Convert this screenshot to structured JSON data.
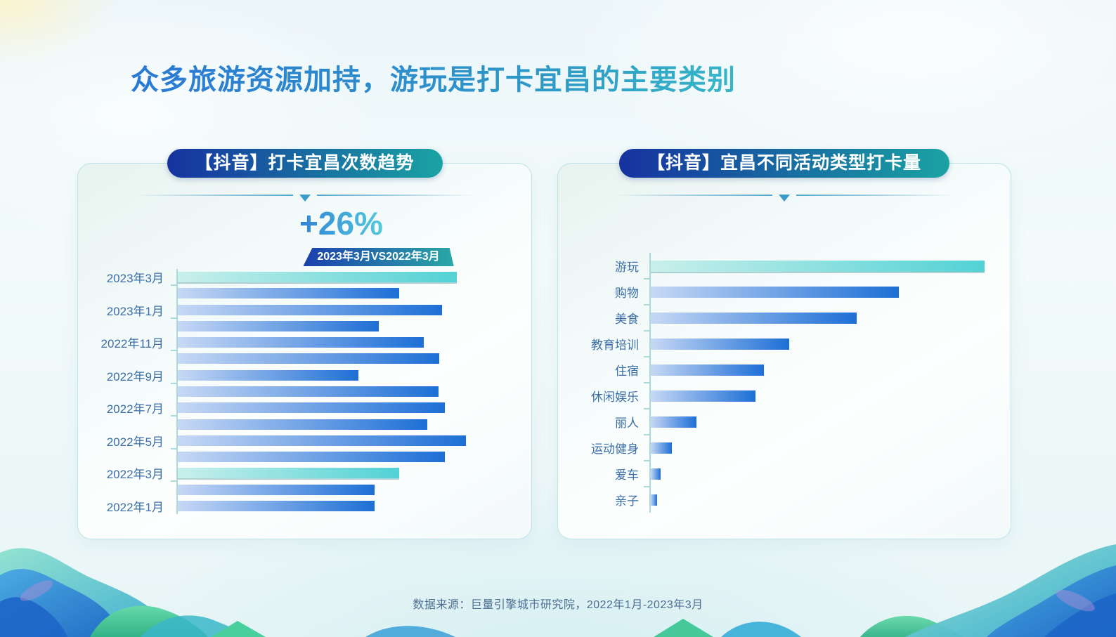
{
  "title": "众多旅游资源加持，游玩是打卡宜昌的主要类别",
  "footer": "数据来源：巨量引擎城市研究院，2022年1月-2023年3月",
  "left_panel": {
    "header": "【抖音】打卡宜昌次数趋势",
    "stat": "+26%",
    "badge": "2023年3月VS2022年3月"
  },
  "right_panel": {
    "header": "【抖音】宜昌不同活动类型打卡量"
  },
  "colors": {
    "title_gradient_start": "#2a79d4",
    "title_gradient_end": "#36b6c8",
    "pill_gradient_start": "#16329f",
    "pill_gradient_end": "#1aa3a3",
    "stat_gradient_start": "#3184d6",
    "stat_gradient_end": "#55c8da",
    "bar_blue_start": "#c7d8f5",
    "bar_blue_end": "#1d6fd6",
    "bar_teal_start": "#c9efeb",
    "bar_teal_end": "#52d2d5",
    "axis": "#aadbd8",
    "label_text": "#3b6ea6"
  },
  "chart_data": [
    {
      "type": "bar",
      "orientation": "horizontal",
      "title": "【抖音】打卡宜昌次数趋势",
      "annotation": {
        "value": "+26%",
        "label": "2023年3月VS2022年3月"
      },
      "categories": [
        "2023年3月",
        "",
        "2023年1月",
        "",
        "2022年11月",
        "",
        "2022年9月",
        "",
        "2022年7月",
        "",
        "2022年5月",
        "",
        "2022年3月",
        "",
        "2022年1月"
      ],
      "values": [
        96.8,
        76.9,
        91.8,
        69.8,
        85.4,
        90.7,
        62.6,
        90.5,
        92.8,
        86.7,
        100,
        92.6,
        76.9,
        68.2,
        68.2
      ],
      "value_scale": "percent_of_max_bar",
      "highlight_indices": [
        0,
        12
      ],
      "tick_rule": "odd_rows",
      "grid": false,
      "legend": false,
      "value_axis_labels": false
    },
    {
      "type": "bar",
      "orientation": "horizontal",
      "title": "【抖音】宜昌不同活动类型打卡量",
      "categories": [
        "游玩",
        "购物",
        "美食",
        "教育培训",
        "住宿",
        "休闲娱乐",
        "丽人",
        "运动健身",
        "爱车",
        "亲子"
      ],
      "values": [
        100,
        74.4,
        61.6,
        41.5,
        33.9,
        31.4,
        13.6,
        6.3,
        3.0,
        1.8
      ],
      "value_scale": "percent_of_max_bar",
      "highlight_indices": [
        0
      ],
      "tick_rule": "all_rows",
      "grid": false,
      "legend": false,
      "value_axis_labels": false
    }
  ]
}
